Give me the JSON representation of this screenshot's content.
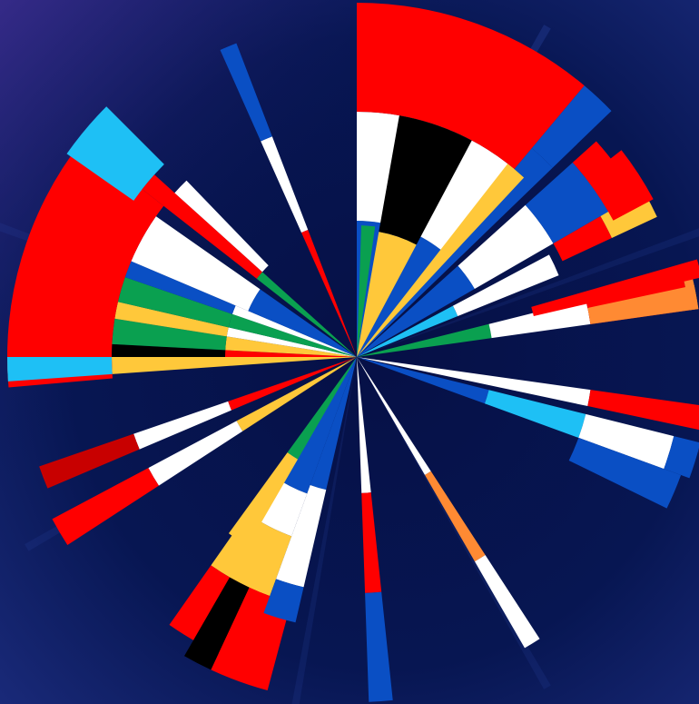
{
  "artwork": {
    "description_free": true,
    "palette": {
      "red": "#ff0000",
      "dark_red": "#c80000",
      "white": "#ffffff",
      "blue": "#0a4fc4",
      "cyan": "#1ec0f5",
      "green": "#0aa050",
      "yellow": "#ffc83a",
      "black": "#000000",
      "orange": "#ff8a33",
      "background": "#06103a"
    },
    "wedges": [
      {
        "id": "france-ray",
        "bands": [
          "white",
          "red"
        ]
      },
      {
        "id": "top-blue-ray",
        "bands": [
          "red",
          "white",
          "blue"
        ]
      },
      {
        "id": "netherlands-wedge",
        "bands": [
          "blue",
          "white",
          "red"
        ]
      },
      {
        "id": "black-stripe-wedge",
        "bands": [
          "yellow",
          "black",
          "white"
        ]
      },
      {
        "id": "blue-green-yellow-wedge",
        "bands": [
          "blue",
          "green",
          "yellow"
        ]
      },
      {
        "id": "upper-right-wedge",
        "bands": [
          "blue",
          "white",
          "yellow",
          "red"
        ]
      },
      {
        "id": "orange-ray",
        "bands": [
          "green",
          "white",
          "red",
          "orange"
        ]
      },
      {
        "id": "left-fan",
        "bands": [
          "blue",
          "green",
          "yellow",
          "green",
          "white",
          "red",
          "cyan"
        ]
      },
      {
        "id": "lower-left-rays",
        "bands": [
          "red",
          "white",
          "dark_red"
        ]
      },
      {
        "id": "bottom-left-wedge",
        "bands": [
          "blue",
          "white",
          "yellow",
          "red",
          "black"
        ]
      },
      {
        "id": "bottom-rays",
        "bands": [
          "white",
          "red",
          "blue"
        ]
      },
      {
        "id": "bottom-right-rays",
        "bands": [
          "white",
          "orange",
          "white"
        ]
      },
      {
        "id": "right-rays",
        "bands": [
          "blue",
          "white",
          "cyan",
          "white",
          "blue",
          "red"
        ]
      }
    ]
  }
}
